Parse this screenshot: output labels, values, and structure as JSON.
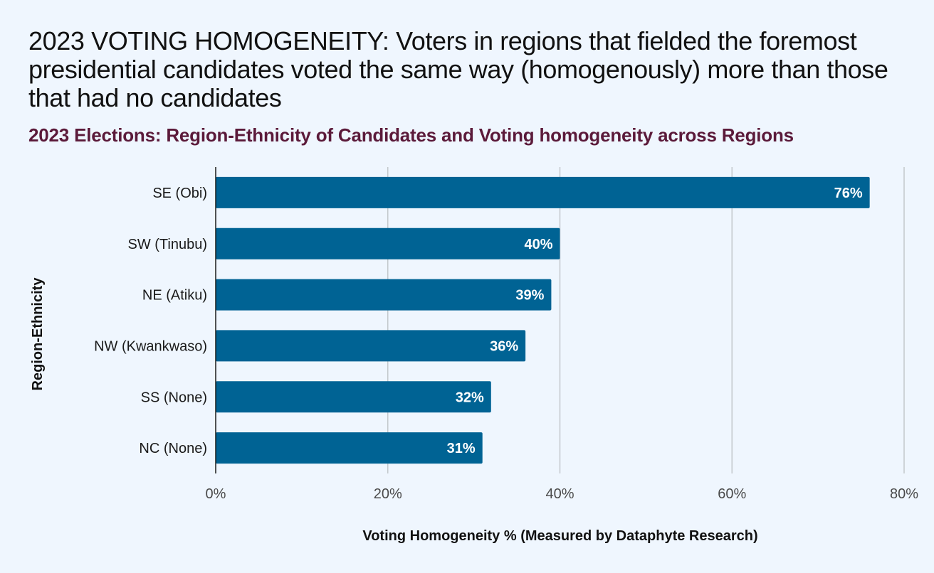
{
  "header": {
    "title": "2023 VOTING HOMOGENEITY: Voters in regions that fielded the foremost presidential candidates voted the same way (homogenously) more than those that had no candidates"
  },
  "chart_data": {
    "type": "bar",
    "orientation": "horizontal",
    "title": "2023 Elections: Region-Ethnicity of Candidates and Voting homogeneity across Regions",
    "xlabel": "Voting Homogeneity % (Measured by Dataphyte Research)",
    "ylabel": "Region-Ethnicity",
    "categories": [
      "SE (Obi)",
      "SW (Tinubu)",
      "NE (Atiku)",
      "NW (Kwankwaso)",
      "SS (None)",
      "NC (None)"
    ],
    "values": [
      76,
      40,
      39,
      36,
      32,
      31
    ],
    "data_labels": [
      "76%",
      "40%",
      "39%",
      "36%",
      "32%",
      "31%"
    ],
    "xlim": [
      0,
      80
    ],
    "x_ticks": [
      0,
      20,
      40,
      60,
      80
    ],
    "x_tick_labels": [
      "0%",
      "20%",
      "40%",
      "60%",
      "80%"
    ],
    "grid": true,
    "colors": {
      "bar": "#006394",
      "grid": "#c3c8cc",
      "axis": "#1a1a1a",
      "background": "#eff6fe",
      "chart_title": "#5b1a3a"
    }
  }
}
